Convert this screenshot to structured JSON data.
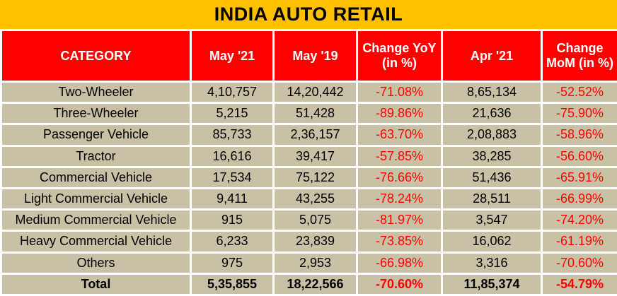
{
  "title": "INDIA AUTO RETAIL",
  "headers": [
    "CATEGORY",
    "May '21",
    "May '19",
    "Change YoY (in %)",
    "Apr '21",
    "Change MoM (in %)"
  ],
  "rows": [
    {
      "category": "Two-Wheeler",
      "may21": "4,10,757",
      "may19": "14,20,442",
      "yoy": "-71.08%",
      "apr21": "8,65,134",
      "mom": "-52.52%"
    },
    {
      "category": "Three-Wheeler",
      "may21": "5,215",
      "may19": "51,428",
      "yoy": "-89.86%",
      "apr21": "21,636",
      "mom": "-75.90%"
    },
    {
      "category": "Passenger Vehicle",
      "may21": "85,733",
      "may19": "2,36,157",
      "yoy": "-63.70%",
      "apr21": "2,08,883",
      "mom": "-58.96%"
    },
    {
      "category": "Tractor",
      "may21": "16,616",
      "may19": "39,417",
      "yoy": "-57.85%",
      "apr21": "38,285",
      "mom": "-56.60%"
    },
    {
      "category": "Commercial Vehicle",
      "may21": "17,534",
      "may19": "75,122",
      "yoy": "-76.66%",
      "apr21": "51,436",
      "mom": "-65.91%"
    },
    {
      "category": "Light Commercial Vehicle",
      "may21": "9,411",
      "may19": "43,255",
      "yoy": "-78.24%",
      "apr21": "28,511",
      "mom": "-66.99%"
    },
    {
      "category": "Medium Commercial Vehicle",
      "may21": "915",
      "may19": "5,075",
      "yoy": "-81.97%",
      "apr21": "3,547",
      "mom": "-74.20%"
    },
    {
      "category": "Heavy Commercial Vehicle",
      "may21": "6,233",
      "may19": "23,839",
      "yoy": "-73.85%",
      "apr21": "16,062",
      "mom": "-61.19%"
    },
    {
      "category": "Others",
      "may21": "975",
      "may19": "2,953",
      "yoy": "-66.98%",
      "apr21": "3,316",
      "mom": "-70.60%"
    }
  ],
  "total": {
    "category": "Total",
    "may21": "5,35,855",
    "may19": "18,22,566",
    "yoy": "-70.60%",
    "apr21": "11,85,374",
    "mom": "-54.79%"
  },
  "colors": {
    "title_bg": "#ffc000",
    "header_bg": "#ff0000",
    "cell_bg": "#c9c1a6",
    "negative_text": "#ff0000"
  }
}
